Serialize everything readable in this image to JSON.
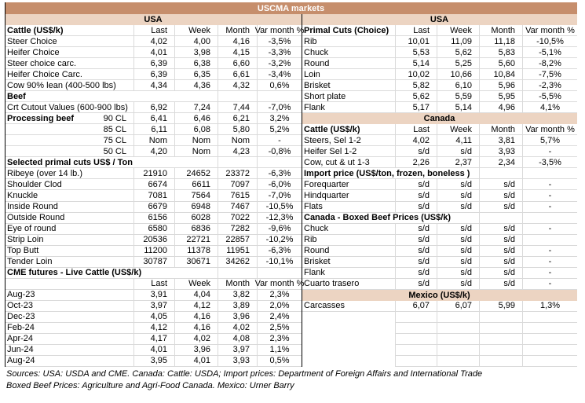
{
  "title": "USCMA markets",
  "colors": {
    "accent_band": "#C68E6C",
    "region_band": "#ECD4C2",
    "grid_line": "#DADADA",
    "divider": "#000000"
  },
  "sources": [
    "Sources: USA: USDA and CME. Canada: Cattle: USDA; Import prices: Department of Foreign Affairs and International Trade",
    "Boxed Beef Prices: Agriculture and Agri-Food Canada. Mexico: Urner Barry"
  ],
  "left": {
    "region": "USA",
    "rows": [
      {
        "t": "h",
        "label": "Cattle (US$/k)",
        "cols": [
          "Last",
          "Week",
          "Month",
          "Var month %"
        ]
      },
      {
        "t": "d",
        "label": "Steer Choice",
        "v": [
          "4,02",
          "4,00",
          "4,16",
          "-3,5%"
        ]
      },
      {
        "t": "d",
        "label": "Heifer Choice",
        "v": [
          "4,01",
          "3,98",
          "4,15",
          "-3,3%"
        ]
      },
      {
        "t": "d",
        "label": "Steer choice carc.",
        "v": [
          "6,39",
          "6,38",
          "6,60",
          "-3,2%"
        ]
      },
      {
        "t": "d",
        "label": "Heifer Choice Carc.",
        "v": [
          "6,39",
          "6,35",
          "6,61",
          "-3,4%"
        ]
      },
      {
        "t": "d",
        "label": "Cow 90% lean (400-500 lbs)",
        "v": [
          "4,34",
          "4,36",
          "4,32",
          "0,6%"
        ]
      },
      {
        "t": "s",
        "label": "Beef"
      },
      {
        "t": "d",
        "label": "Crt Cutout Values (600-900 lbs)",
        "v": [
          "6,92",
          "7,24",
          "7,44",
          "-7,0%"
        ]
      },
      {
        "t": "split",
        "label": "Processing beef",
        "label2": "90 CL",
        "v": [
          "6,41",
          "6,46",
          "6,21",
          "3,2%"
        ]
      },
      {
        "t": "r",
        "label": "85 CL",
        "v": [
          "6,11",
          "6,08",
          "5,80",
          "5,2%"
        ]
      },
      {
        "t": "r",
        "label": "75 CL",
        "v": [
          "Nom",
          "Nom",
          "Nom",
          "-"
        ]
      },
      {
        "t": "r",
        "label": "50 CL",
        "v": [
          "4,20",
          "Nom",
          "4,23",
          "-0,8%"
        ]
      },
      {
        "t": "s",
        "label": "Selected primal cuts US$ / Ton"
      },
      {
        "t": "d",
        "label": "Ribeye (over 14 lb.)",
        "v": [
          "21910",
          "24652",
          "23372",
          "-6,3%"
        ]
      },
      {
        "t": "d",
        "label": "Shoulder Clod",
        "v": [
          "6674",
          "6611",
          "7097",
          "-6,0%"
        ]
      },
      {
        "t": "d",
        "label": "Knuckle",
        "v": [
          "7081",
          "7564",
          "7615",
          "-7,0%"
        ]
      },
      {
        "t": "d",
        "label": "Inside Round",
        "v": [
          "6679",
          "6948",
          "7467",
          "-10,5%"
        ]
      },
      {
        "t": "d",
        "label": "Outside Round",
        "v": [
          "6156",
          "6028",
          "7022",
          "-12,3%"
        ]
      },
      {
        "t": "d",
        "label": "Eye of round",
        "v": [
          "6580",
          "6836",
          "7282",
          "-9,6%"
        ]
      },
      {
        "t": "d",
        "label": "Strip Loin",
        "v": [
          "20536",
          "22721",
          "22857",
          "-10,2%"
        ]
      },
      {
        "t": "d",
        "label": "Top Butt",
        "v": [
          "11200",
          "11378",
          "11951",
          "-6,3%"
        ]
      },
      {
        "t": "d",
        "label": "Tender Loin",
        "v": [
          "30787",
          "30671",
          "34262",
          "-10,1%"
        ]
      },
      {
        "t": "s",
        "label": "CME futures - Live Cattle (US$/k)"
      },
      {
        "t": "h",
        "label": "",
        "cols": [
          "Last",
          "Week",
          "Month",
          "Var month %"
        ]
      },
      {
        "t": "d",
        "label": "Aug-23",
        "v": [
          "3,91",
          "4,04",
          "3,82",
          "2,3%"
        ]
      },
      {
        "t": "d",
        "label": "Oct-23",
        "v": [
          "3,97",
          "4,12",
          "3,89",
          "2,0%"
        ]
      },
      {
        "t": "d",
        "label": "Dec-23",
        "v": [
          "4,05",
          "4,16",
          "3,96",
          "2,4%"
        ]
      },
      {
        "t": "d",
        "label": "Feb-24",
        "v": [
          "4,12",
          "4,16",
          "4,02",
          "2,5%"
        ]
      },
      {
        "t": "d",
        "label": "Apr-24",
        "v": [
          "4,17",
          "4,02",
          "4,08",
          "2,3%"
        ]
      },
      {
        "t": "d",
        "label": "Jun-24",
        "v": [
          "4,01",
          "3,96",
          "3,97",
          "1,1%"
        ]
      },
      {
        "t": "d",
        "label": "Aug-24",
        "v": [
          "3,95",
          "4,01",
          "3,93",
          "0,5%"
        ]
      }
    ]
  },
  "right": {
    "region": "USA",
    "rows": [
      {
        "t": "h",
        "label": "Primal Cuts (Choice)",
        "cols": [
          "Last",
          "Week",
          "Month",
          "Var month %"
        ]
      },
      {
        "t": "d",
        "label": "Rib",
        "v": [
          "10,01",
          "11,09",
          "11,18",
          "-10,5%"
        ]
      },
      {
        "t": "d",
        "label": "Chuck",
        "v": [
          "5,53",
          "5,62",
          "5,83",
          "-5,1%"
        ]
      },
      {
        "t": "d",
        "label": "Round",
        "v": [
          "5,14",
          "5,25",
          "5,60",
          "-8,2%"
        ]
      },
      {
        "t": "d",
        "label": "Loin",
        "v": [
          "10,02",
          "10,66",
          "10,84",
          "-7,5%"
        ]
      },
      {
        "t": "d",
        "label": "Brisket",
        "v": [
          "5,82",
          "6,10",
          "5,96",
          "-2,3%"
        ]
      },
      {
        "t": "d",
        "label": "Short plate",
        "v": [
          "5,62",
          "5,59",
          "5,95",
          "-5,5%"
        ]
      },
      {
        "t": "d",
        "label": "Flank",
        "v": [
          "5,17",
          "5,14",
          "4,96",
          "4,1%"
        ]
      },
      {
        "t": "band",
        "label": "Canada"
      },
      {
        "t": "h",
        "label": "Cattle (US$/k)",
        "cols": [
          "Last",
          "Week",
          "Month",
          "Var month %"
        ]
      },
      {
        "t": "d",
        "label": "Steers, Sel 1-2",
        "v": [
          "4,02",
          "4,11",
          "3,81",
          "5,7%"
        ]
      },
      {
        "t": "d",
        "label": "Heifer Sel 1-2",
        "v": [
          "s/d",
          "s/d",
          "3,93",
          "-"
        ]
      },
      {
        "t": "d",
        "label": "Cow, cut & ut 1-3",
        "v": [
          "2,26",
          "2,37",
          "2,34",
          "-3,5%"
        ]
      },
      {
        "t": "s",
        "label": "Import price (US$/ton, frozen, boneless )"
      },
      {
        "t": "d",
        "label": "Forequarter",
        "v": [
          "s/d",
          "s/d",
          "s/d",
          "-"
        ]
      },
      {
        "t": "d",
        "label": "Hindquarter",
        "v": [
          "s/d",
          "s/d",
          "s/d",
          "-"
        ]
      },
      {
        "t": "d",
        "label": "Flats",
        "v": [
          "s/d",
          "s/d",
          "s/d",
          "-"
        ]
      },
      {
        "t": "s",
        "label": "Canada - Boxed Beef Prices (US$/k)"
      },
      {
        "t": "d",
        "label": "Chuck",
        "v": [
          "s/d",
          "s/d",
          "s/d",
          "-"
        ]
      },
      {
        "t": "d",
        "label": "Rib",
        "v": [
          "s/d",
          "s/d",
          "s/d",
          ""
        ]
      },
      {
        "t": "d",
        "label": "Round",
        "v": [
          "s/d",
          "s/d",
          "s/d",
          "-"
        ]
      },
      {
        "t": "d",
        "label": "Brisket",
        "v": [
          "s/d",
          "s/d",
          "s/d",
          "-"
        ]
      },
      {
        "t": "d",
        "label": "Flank",
        "v": [
          "s/d",
          "s/d",
          "s/d",
          "-"
        ]
      },
      {
        "t": "d",
        "label": "Cuarto trasero",
        "v": [
          "s/d",
          "s/d",
          "s/d",
          "-"
        ]
      },
      {
        "t": "band",
        "label": "Mexico (US$/k)"
      },
      {
        "t": "d",
        "label": "Carcasses",
        "v": [
          "6,07",
          "6,07",
          "5,99",
          "1,3%"
        ]
      },
      {
        "t": "e"
      },
      {
        "t": "e"
      },
      {
        "t": "e"
      },
      {
        "t": "e"
      },
      {
        "t": "e"
      }
    ]
  }
}
